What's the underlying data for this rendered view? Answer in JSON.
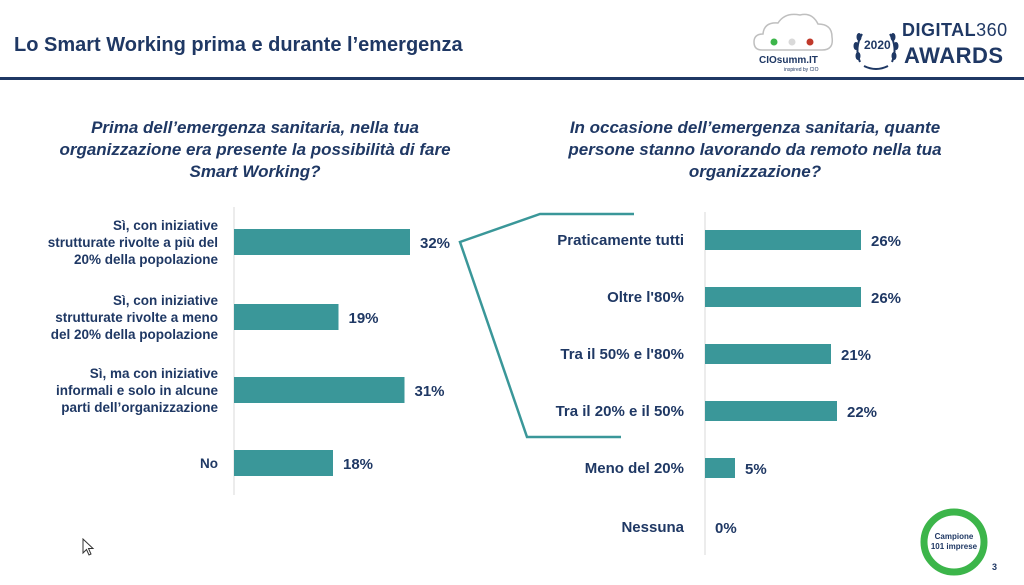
{
  "header": {
    "title": "Lo Smart Working prima e durante l’emergenza"
  },
  "logos": {
    "cio_name": "CIOsumm.IT",
    "cio_sub": "inspired by CIO",
    "award_year": "2020",
    "award_top_a": "DIGITAL",
    "award_top_b": "360",
    "award_bottom": "AWARDS"
  },
  "colors": {
    "bar": "#3a9799",
    "text": "#1f3864",
    "connector": "#3a9799",
    "badge": "#3cb54a"
  },
  "chart_data": [
    {
      "type": "bar",
      "orientation": "horizontal",
      "title": "Prima dell’emergenza sanitaria, nella tua organizzazione era presente la possibilità di fare Smart Working?",
      "title_lines": [
        "Prima dell’emergenza sanitaria, nella tua",
        "organizzazione era presente la possibilità di fare",
        "Smart Working?"
      ],
      "categories": [
        [
          "Sì, con iniziative",
          "strutturate rivolte a più del",
          "20% della popolazione"
        ],
        [
          "Sì, con iniziative",
          "strutturate rivolte a meno",
          "del 20% della popolazione"
        ],
        [
          "Sì, ma con iniziative",
          "informali e solo in alcune",
          "parti dell’organizzazione"
        ],
        [
          "No"
        ]
      ],
      "values": [
        32,
        19,
        31,
        18
      ],
      "value_labels": [
        "32%",
        "19%",
        "31%",
        "18%"
      ],
      "unit": "%",
      "xlim": [
        0,
        40
      ]
    },
    {
      "type": "bar",
      "orientation": "horizontal",
      "title": "In occasione dell’emergenza sanitaria, quante persone stanno lavorando da remoto nella tua organizzazione?",
      "title_lines": [
        "In occasione dell’emergenza sanitaria, quante",
        "persone stanno lavorando da remoto nella tua",
        "organizzazione?"
      ],
      "categories": [
        [
          "Praticamente tutti"
        ],
        [
          "Oltre l'80%"
        ],
        [
          "Tra il 50% e l'80%"
        ],
        [
          "Tra il 20% e il 50%"
        ],
        [
          "Meno del 20%"
        ],
        [
          "Nessuna"
        ]
      ],
      "values": [
        26,
        26,
        21,
        22,
        5,
        0
      ],
      "value_labels": [
        "26%",
        "26%",
        "21%",
        "22%",
        "5%",
        "0%"
      ],
      "unit": "%",
      "xlim": [
        0,
        40
      ]
    }
  ],
  "badge": {
    "line1": "Campione",
    "line2": "101 imprese"
  },
  "page_number": "3"
}
